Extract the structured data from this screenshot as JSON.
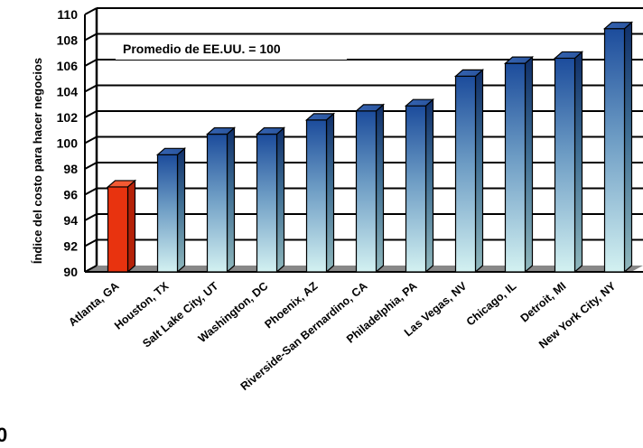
{
  "chart_data": {
    "type": "bar",
    "title": "",
    "ylabel": "Índice del costo para  hacer negocios",
    "xlabel": "",
    "annotation": "Promedio de EE.UU. = 100",
    "categories": [
      "Atlanta, GA",
      "Houston, TX",
      "Salt Lake City, UT",
      "Washington, DC",
      "Phoenix, AZ",
      "Riverside-San Bernardino, CA",
      "Philadelphia, PA",
      "Las Vegas, NV",
      "Chicago, IL",
      "Detroit, MI",
      "New York City, NY"
    ],
    "values": [
      96.6,
      99.1,
      100.7,
      100.7,
      101.8,
      102.5,
      102.9,
      105.2,
      106.2,
      106.6,
      108.9
    ],
    "ylim": [
      90,
      110
    ],
    "yticks": [
      "90",
      "92",
      "94",
      "96",
      "98",
      "100",
      "102",
      "104",
      "106",
      "108",
      "110"
    ],
    "grid": true,
    "colors": {
      "highlight_front": "#e8330f",
      "highlight_side": "#b52208",
      "highlight_top": "#f25a33",
      "bar_top_color": "#1f4fa0",
      "bar_bottom_color": "#d3f1f1",
      "floor": "#888888"
    }
  },
  "stray_text": "0"
}
